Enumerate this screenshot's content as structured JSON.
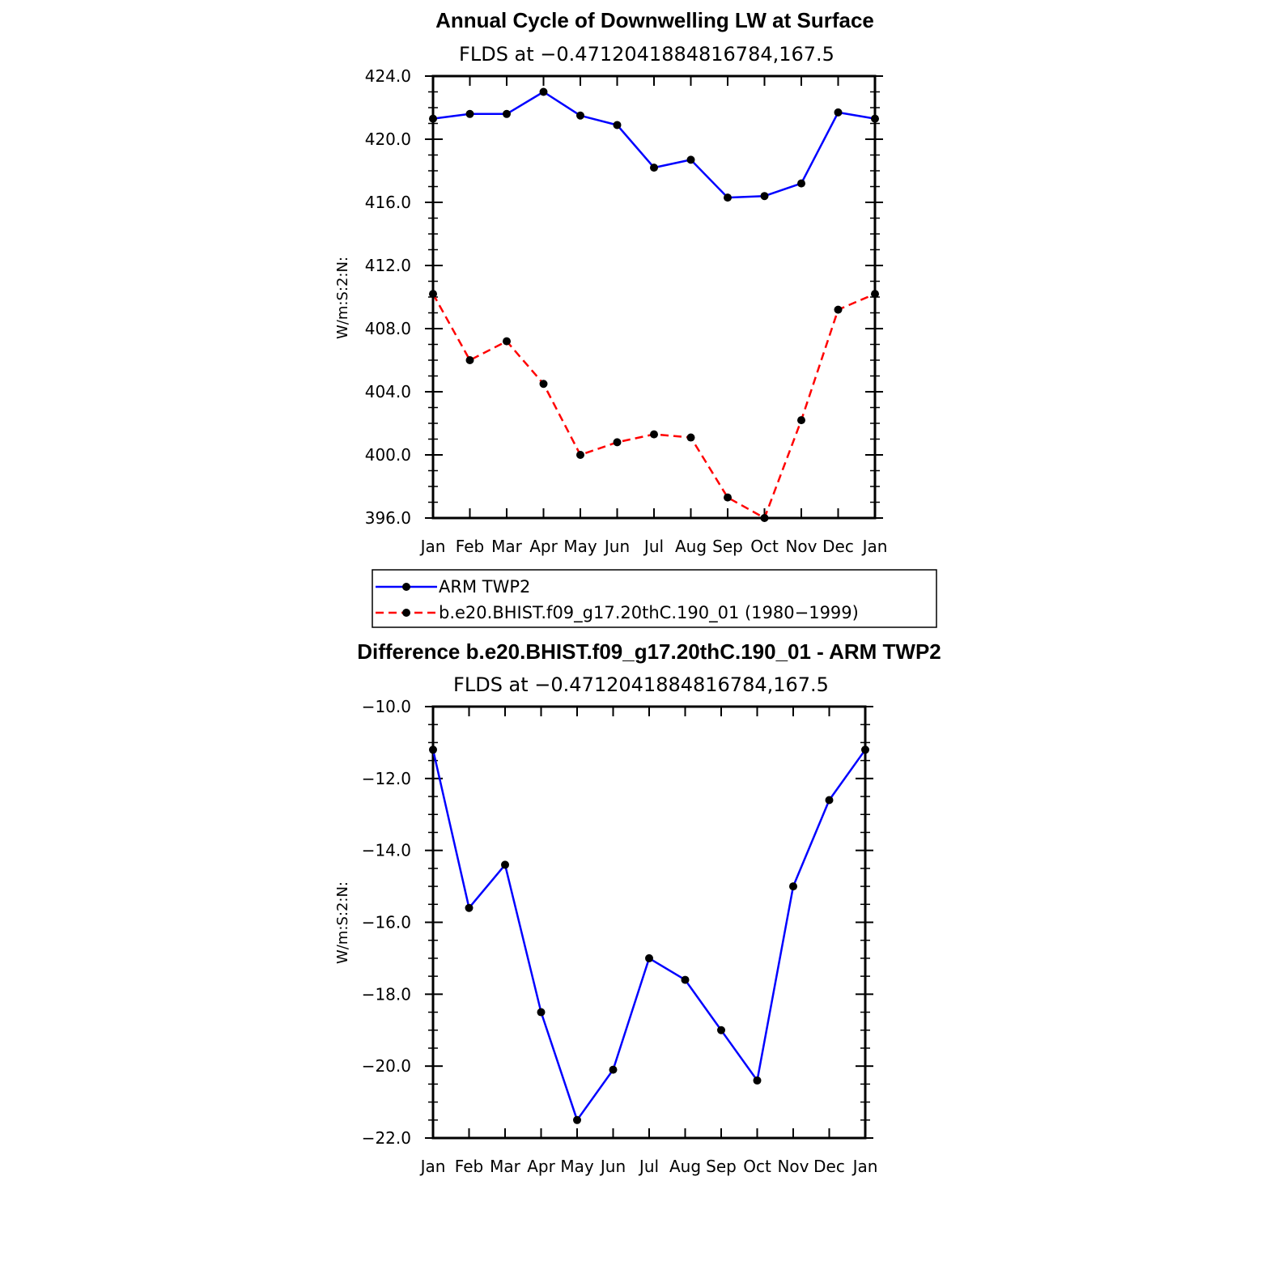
{
  "chart_data": [
    {
      "type": "line",
      "title": "Annual Cycle of Downwelling LW at Surface",
      "subtitle": "FLDS at −0.4712041884816784,167.5",
      "ylabel": "W/m:S:2:N:",
      "xlabel": "",
      "categories": [
        "Jan",
        "Feb",
        "Mar",
        "Apr",
        "May",
        "Jun",
        "Jul",
        "Aug",
        "Sep",
        "Oct",
        "Nov",
        "Dec",
        "Jan"
      ],
      "ylim": [
        396,
        424
      ],
      "yticks": [
        "396.0",
        "400.0",
        "404.0",
        "408.0",
        "412.0",
        "416.0",
        "420.0",
        "424.0"
      ],
      "grid": false,
      "series": [
        {
          "name": "ARM TWP2",
          "color": "#0000ff",
          "dash": "solid",
          "values": [
            421.3,
            421.6,
            421.6,
            423.0,
            421.5,
            420.9,
            418.2,
            418.7,
            416.3,
            416.4,
            417.2,
            421.7,
            421.3
          ]
        },
        {
          "name": "b.e20.BHIST.f09_g17.20thC.190_01 (1980−1999)",
          "color": "#ff0000",
          "dash": "dashed",
          "values": [
            410.2,
            406.0,
            407.2,
            404.5,
            400.0,
            400.8,
            401.3,
            401.1,
            397.3,
            396.0,
            402.2,
            409.2,
            410.2
          ]
        }
      ]
    },
    {
      "type": "line",
      "title": "Difference b.e20.BHIST.f09_g17.20thC.190_01 - ARM TWP2",
      "subtitle": "FLDS at −0.4712041884816784,167.5",
      "ylabel": "W/m:S:2:N:",
      "xlabel": "",
      "categories": [
        "Jan",
        "Feb",
        "Mar",
        "Apr",
        "May",
        "Jun",
        "Jul",
        "Aug",
        "Sep",
        "Oct",
        "Nov",
        "Dec",
        "Jan"
      ],
      "ylim": [
        -22,
        -10
      ],
      "yticks": [
        "−22.0",
        "−20.0",
        "−18.0",
        "−16.0",
        "−14.0",
        "−12.0",
        "−10.0"
      ],
      "grid": false,
      "series": [
        {
          "color": "#0000ff",
          "dash": "solid",
          "values": [
            -11.2,
            -15.6,
            -14.4,
            -18.5,
            -21.5,
            -20.1,
            -17.0,
            -17.6,
            -19.0,
            -20.4,
            -15.0,
            -12.6,
            -11.2
          ]
        }
      ]
    }
  ]
}
